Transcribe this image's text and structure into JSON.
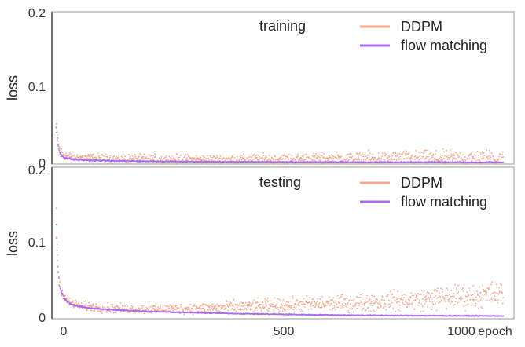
{
  "chart_data": [
    {
      "type": "scatter",
      "annotation": "training",
      "xlabel": "",
      "ylabel": "loss",
      "xlim": [
        0,
        1075
      ],
      "ylim": [
        0,
        0.2
      ],
      "yticks": [
        "0",
        "0.1",
        "0.2"
      ],
      "grid": false,
      "legend_position": "top-right",
      "series": [
        {
          "name": "DDPM",
          "color": "#F5A88C",
          "x": [
            10,
            12,
            14,
            16,
            18,
            20,
            25,
            30,
            40,
            50,
            60,
            80,
            100,
            130,
            160,
            200,
            250,
            300,
            350,
            400,
            450,
            500,
            550,
            600,
            650,
            700,
            750,
            800,
            850,
            900,
            950,
            1000,
            1050
          ],
          "y": [
            0.052,
            0.04,
            0.03,
            0.024,
            0.02,
            0.017,
            0.014,
            0.012,
            0.01,
            0.009,
            0.0085,
            0.008,
            0.0075,
            0.007,
            0.0068,
            0.0066,
            0.0064,
            0.0063,
            0.0062,
            0.0062,
            0.0062,
            0.0063,
            0.0064,
            0.0065,
            0.0066,
            0.0067,
            0.0068,
            0.0069,
            0.007,
            0.0071,
            0.0072,
            0.0073,
            0.0074
          ],
          "spread": [
            0.004,
            0.004,
            0.004,
            0.004,
            0.004,
            0.003,
            0.003,
            0.003,
            0.003,
            0.003,
            0.003,
            0.003,
            0.003,
            0.003,
            0.003,
            0.003,
            0.003,
            0.003,
            0.003,
            0.003,
            0.003,
            0.0035,
            0.0035,
            0.004,
            0.004,
            0.0045,
            0.0045,
            0.005,
            0.005,
            0.005,
            0.0055,
            0.0055,
            0.0055
          ]
        },
        {
          "name": "flow matching",
          "color": "#A86BF2",
          "x": [
            10,
            12,
            14,
            16,
            18,
            20,
            25,
            30,
            40,
            50,
            60,
            80,
            100,
            130,
            160,
            200,
            250,
            300,
            350,
            400,
            450,
            500,
            550,
            600,
            650,
            700,
            750,
            800,
            850,
            900,
            950,
            1000,
            1050
          ],
          "y": [
            0.046,
            0.035,
            0.026,
            0.02,
            0.016,
            0.013,
            0.01,
            0.0085,
            0.007,
            0.0062,
            0.0057,
            0.0052,
            0.0048,
            0.0044,
            0.0041,
            0.0038,
            0.0035,
            0.0033,
            0.0031,
            0.003,
            0.0029,
            0.0028,
            0.0027,
            0.0026,
            0.0026,
            0.0025,
            0.0025,
            0.0024,
            0.0024,
            0.0024,
            0.0023,
            0.0023,
            0.0023
          ],
          "spread": [
            0.002,
            0.002,
            0.002,
            0.002,
            0.0015,
            0.0015,
            0.001,
            0.001,
            0.0008,
            0.0006,
            0.0006,
            0.0005,
            0.0005,
            0.0004,
            0.0004,
            0.0004,
            0.0003,
            0.0003,
            0.0003,
            0.0003,
            0.0003,
            0.0003,
            0.0003,
            0.0003,
            0.0003,
            0.0003,
            0.0003,
            0.0003,
            0.0003,
            0.0003,
            0.0003,
            0.0003,
            0.0003
          ]
        }
      ]
    },
    {
      "type": "scatter",
      "annotation": "testing",
      "xlabel": "epoch",
      "ylabel": "loss",
      "xlim": [
        0,
        1075
      ],
      "ylim": [
        0,
        0.2
      ],
      "xticks": [
        "0",
        "500",
        "1000"
      ],
      "xtick_values": [
        0,
        500,
        1000
      ],
      "yticks": [
        "0",
        "0.1",
        "0.2"
      ],
      "grid": false,
      "legend_position": "top-right",
      "series": [
        {
          "name": "DDPM",
          "color": "#F5A88C",
          "x": [
            10,
            12,
            14,
            16,
            18,
            20,
            25,
            30,
            40,
            50,
            60,
            80,
            100,
            130,
            160,
            200,
            250,
            300,
            350,
            400,
            450,
            500,
            550,
            600,
            650,
            700,
            750,
            800,
            850,
            900,
            950,
            1000,
            1050
          ],
          "y": [
            0.135,
            0.095,
            0.07,
            0.055,
            0.045,
            0.04,
            0.033,
            0.028,
            0.023,
            0.02,
            0.018,
            0.016,
            0.015,
            0.014,
            0.013,
            0.013,
            0.0128,
            0.0132,
            0.014,
            0.015,
            0.016,
            0.017,
            0.018,
            0.019,
            0.02,
            0.021,
            0.022,
            0.023,
            0.025,
            0.027,
            0.029,
            0.031,
            0.033
          ],
          "spread": [
            0.005,
            0.005,
            0.004,
            0.004,
            0.003,
            0.003,
            0.003,
            0.003,
            0.003,
            0.003,
            0.003,
            0.003,
            0.003,
            0.003,
            0.003,
            0.003,
            0.003,
            0.0035,
            0.0035,
            0.004,
            0.004,
            0.0045,
            0.0045,
            0.005,
            0.005,
            0.0055,
            0.006,
            0.0065,
            0.007,
            0.0075,
            0.008,
            0.008,
            0.008
          ]
        },
        {
          "name": "flow matching",
          "color": "#A86BF2",
          "x": [
            10,
            12,
            14,
            16,
            18,
            20,
            25,
            30,
            40,
            50,
            60,
            80,
            100,
            130,
            160,
            200,
            250,
            300,
            350,
            400,
            450,
            500,
            550,
            600,
            650,
            700,
            750,
            800,
            850,
            900,
            950,
            1000,
            1050
          ],
          "y": [
            0.125,
            0.09,
            0.066,
            0.052,
            0.043,
            0.037,
            0.031,
            0.026,
            0.021,
            0.018,
            0.0165,
            0.0148,
            0.0135,
            0.0122,
            0.0112,
            0.0102,
            0.0092,
            0.0084,
            0.0077,
            0.0071,
            0.0066,
            0.0061,
            0.0057,
            0.0053,
            0.005,
            0.0047,
            0.0045,
            0.0043,
            0.0041,
            0.004,
            0.0039,
            0.0038,
            0.0037
          ],
          "spread": [
            0.002,
            0.002,
            0.002,
            0.002,
            0.0015,
            0.0015,
            0.001,
            0.001,
            0.0008,
            0.0007,
            0.0006,
            0.0005,
            0.0005,
            0.0004,
            0.0004,
            0.0004,
            0.0003,
            0.0003,
            0.0003,
            0.0003,
            0.0003,
            0.0003,
            0.0003,
            0.0003,
            0.0003,
            0.0003,
            0.0003,
            0.0003,
            0.0003,
            0.0003,
            0.0003,
            0.0003,
            0.0003
          ]
        }
      ]
    }
  ]
}
